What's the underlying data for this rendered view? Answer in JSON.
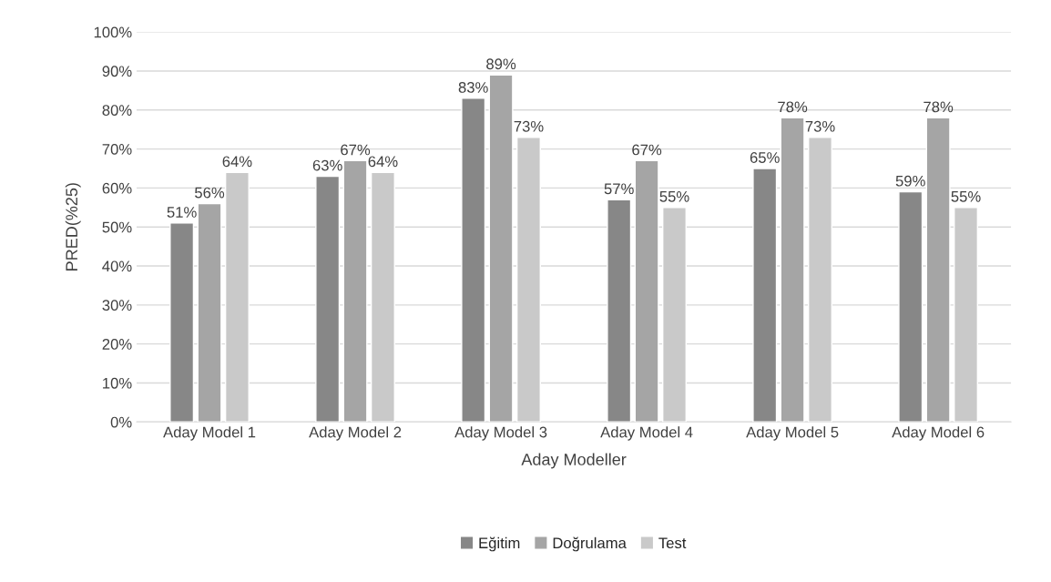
{
  "chart_data": {
    "type": "bar",
    "categories": [
      "Aday Model 1",
      "Aday Model 2",
      "Aday Model 3",
      "Aday Model 4",
      "Aday Model 5",
      "Aday Model 6"
    ],
    "xlabel": "Aday Modeller",
    "ylabel": "PRED(%25)",
    "series": [
      {
        "name": "Eğitim",
        "color": "#878787",
        "values": [
          51,
          63,
          83,
          57,
          65,
          59
        ],
        "value_labels": [
          "51%",
          "63%",
          "83%",
          "57%",
          "65%",
          "59%"
        ]
      },
      {
        "name": "Doğrulama",
        "color": "#a5a5a5",
        "values": [
          56,
          67,
          89,
          67,
          78,
          78
        ],
        "value_labels": [
          "56%",
          "67%",
          "89%",
          "67%",
          "78%",
          "78%"
        ]
      },
      {
        "name": "Test",
        "color": "#c9c9c9",
        "values": [
          64,
          64,
          73,
          55,
          73,
          55
        ],
        "value_labels": [
          "64%",
          "64%",
          "73%",
          "55%",
          "73%",
          "55%"
        ]
      }
    ],
    "ylim": [
      0,
      100
    ],
    "yticks": [
      {
        "value": 0,
        "label": "0%"
      },
      {
        "value": 10,
        "label": "10%"
      },
      {
        "value": 20,
        "label": "20%"
      },
      {
        "value": 30,
        "label": "30%"
      },
      {
        "value": 40,
        "label": "40%"
      },
      {
        "value": 50,
        "label": "50%"
      },
      {
        "value": 60,
        "label": "60%"
      },
      {
        "value": 70,
        "label": "70%"
      },
      {
        "value": 80,
        "label": "80%"
      },
      {
        "value": 90,
        "label": "90%"
      },
      {
        "value": 100,
        "label": "100%"
      }
    ],
    "grid": "y",
    "legend": "bottom"
  }
}
